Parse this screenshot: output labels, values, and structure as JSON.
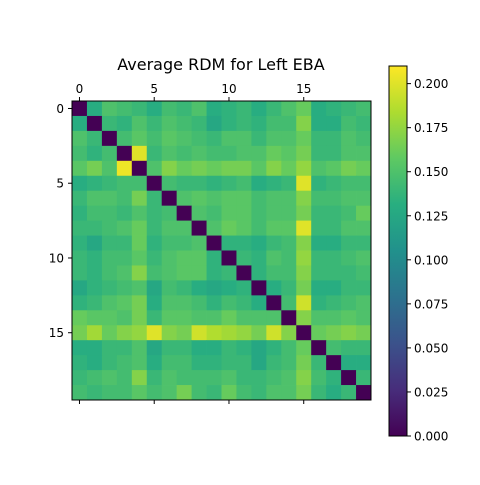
{
  "chart_data": {
    "type": "heatmap",
    "title": "Average RDM for Left EBA",
    "xlabel": "",
    "ylabel": "",
    "size": 20,
    "x_ticks": [
      0,
      5,
      10,
      15
    ],
    "y_ticks": [
      0,
      5,
      10,
      15
    ],
    "x_ticks_position": "top",
    "colormap": "viridis",
    "colorbar": {
      "min": 0.0,
      "max": 0.21,
      "ticks": [
        "0.000",
        "0.025",
        "0.050",
        "0.075",
        "0.100",
        "0.125",
        "0.150",
        "0.175",
        "0.200"
      ],
      "position": "right"
    },
    "values": [
      [
        0.0,
        0.13,
        0.15,
        0.145,
        0.14,
        0.13,
        0.145,
        0.14,
        0.15,
        0.13,
        0.135,
        0.14,
        0.13,
        0.14,
        0.15,
        0.16,
        0.13,
        0.135,
        0.14,
        0.145
      ],
      [
        0.13,
        0.0,
        0.14,
        0.135,
        0.15,
        0.14,
        0.15,
        0.145,
        0.14,
        0.125,
        0.135,
        0.14,
        0.135,
        0.145,
        0.145,
        0.17,
        0.13,
        0.13,
        0.145,
        0.14
      ],
      [
        0.15,
        0.14,
        0.0,
        0.145,
        0.155,
        0.145,
        0.155,
        0.15,
        0.145,
        0.14,
        0.15,
        0.15,
        0.14,
        0.15,
        0.15,
        0.16,
        0.14,
        0.14,
        0.15,
        0.145
      ],
      [
        0.145,
        0.135,
        0.145,
        0.0,
        0.2,
        0.14,
        0.15,
        0.145,
        0.15,
        0.145,
        0.145,
        0.15,
        0.15,
        0.16,
        0.155,
        0.165,
        0.14,
        0.14,
        0.15,
        0.15
      ],
      [
        0.155,
        0.165,
        0.15,
        0.205,
        0.0,
        0.15,
        0.17,
        0.16,
        0.165,
        0.16,
        0.165,
        0.165,
        0.155,
        0.17,
        0.16,
        0.175,
        0.15,
        0.155,
        0.165,
        0.16
      ],
      [
        0.13,
        0.135,
        0.14,
        0.145,
        0.145,
        0.0,
        0.145,
        0.14,
        0.14,
        0.135,
        0.14,
        0.145,
        0.13,
        0.135,
        0.14,
        0.2,
        0.135,
        0.14,
        0.145,
        0.145
      ],
      [
        0.14,
        0.15,
        0.15,
        0.145,
        0.165,
        0.14,
        0.0,
        0.15,
        0.155,
        0.15,
        0.155,
        0.155,
        0.145,
        0.15,
        0.15,
        0.17,
        0.145,
        0.145,
        0.15,
        0.15
      ],
      [
        0.135,
        0.145,
        0.145,
        0.14,
        0.15,
        0.14,
        0.145,
        0.0,
        0.15,
        0.145,
        0.155,
        0.155,
        0.145,
        0.15,
        0.15,
        0.165,
        0.14,
        0.14,
        0.145,
        0.16
      ],
      [
        0.14,
        0.14,
        0.145,
        0.15,
        0.16,
        0.14,
        0.15,
        0.15,
        0.0,
        0.15,
        0.16,
        0.155,
        0.145,
        0.155,
        0.155,
        0.2,
        0.14,
        0.14,
        0.15,
        0.15
      ],
      [
        0.135,
        0.125,
        0.14,
        0.14,
        0.16,
        0.135,
        0.145,
        0.145,
        0.15,
        0.0,
        0.135,
        0.135,
        0.13,
        0.14,
        0.145,
        0.17,
        0.13,
        0.13,
        0.14,
        0.14
      ],
      [
        0.14,
        0.135,
        0.145,
        0.145,
        0.155,
        0.14,
        0.15,
        0.155,
        0.155,
        0.135,
        0.0,
        0.14,
        0.135,
        0.15,
        0.145,
        0.175,
        0.14,
        0.14,
        0.145,
        0.15
      ],
      [
        0.14,
        0.135,
        0.145,
        0.15,
        0.17,
        0.145,
        0.15,
        0.155,
        0.155,
        0.135,
        0.14,
        0.0,
        0.135,
        0.145,
        0.145,
        0.17,
        0.14,
        0.14,
        0.14,
        0.145
      ],
      [
        0.125,
        0.135,
        0.14,
        0.145,
        0.15,
        0.125,
        0.145,
        0.14,
        0.13,
        0.125,
        0.13,
        0.135,
        0.0,
        0.13,
        0.14,
        0.165,
        0.13,
        0.13,
        0.14,
        0.14
      ],
      [
        0.135,
        0.14,
        0.15,
        0.155,
        0.165,
        0.13,
        0.15,
        0.15,
        0.145,
        0.135,
        0.145,
        0.14,
        0.13,
        0.0,
        0.145,
        0.195,
        0.135,
        0.14,
        0.145,
        0.15
      ],
      [
        0.16,
        0.155,
        0.155,
        0.15,
        0.165,
        0.14,
        0.155,
        0.155,
        0.15,
        0.15,
        0.16,
        0.15,
        0.15,
        0.15,
        0.0,
        0.17,
        0.15,
        0.15,
        0.155,
        0.15
      ],
      [
        0.165,
        0.18,
        0.16,
        0.17,
        0.175,
        0.2,
        0.17,
        0.165,
        0.195,
        0.185,
        0.18,
        0.175,
        0.165,
        0.195,
        0.17,
        0.0,
        0.16,
        0.165,
        0.17,
        0.165
      ],
      [
        0.13,
        0.13,
        0.14,
        0.14,
        0.15,
        0.125,
        0.14,
        0.14,
        0.13,
        0.13,
        0.14,
        0.135,
        0.125,
        0.135,
        0.145,
        0.16,
        0.0,
        0.145,
        0.14,
        0.14
      ],
      [
        0.135,
        0.13,
        0.14,
        0.145,
        0.15,
        0.13,
        0.145,
        0.145,
        0.135,
        0.135,
        0.14,
        0.14,
        0.125,
        0.14,
        0.145,
        0.165,
        0.14,
        0.0,
        0.13,
        0.13
      ],
      [
        0.14,
        0.145,
        0.15,
        0.145,
        0.17,
        0.14,
        0.15,
        0.145,
        0.145,
        0.145,
        0.15,
        0.14,
        0.14,
        0.145,
        0.15,
        0.17,
        0.145,
        0.135,
        0.0,
        0.14
      ],
      [
        0.145,
        0.14,
        0.145,
        0.145,
        0.155,
        0.145,
        0.15,
        0.165,
        0.145,
        0.14,
        0.16,
        0.145,
        0.14,
        0.15,
        0.15,
        0.165,
        0.14,
        0.13,
        0.14,
        0.0
      ]
    ]
  }
}
